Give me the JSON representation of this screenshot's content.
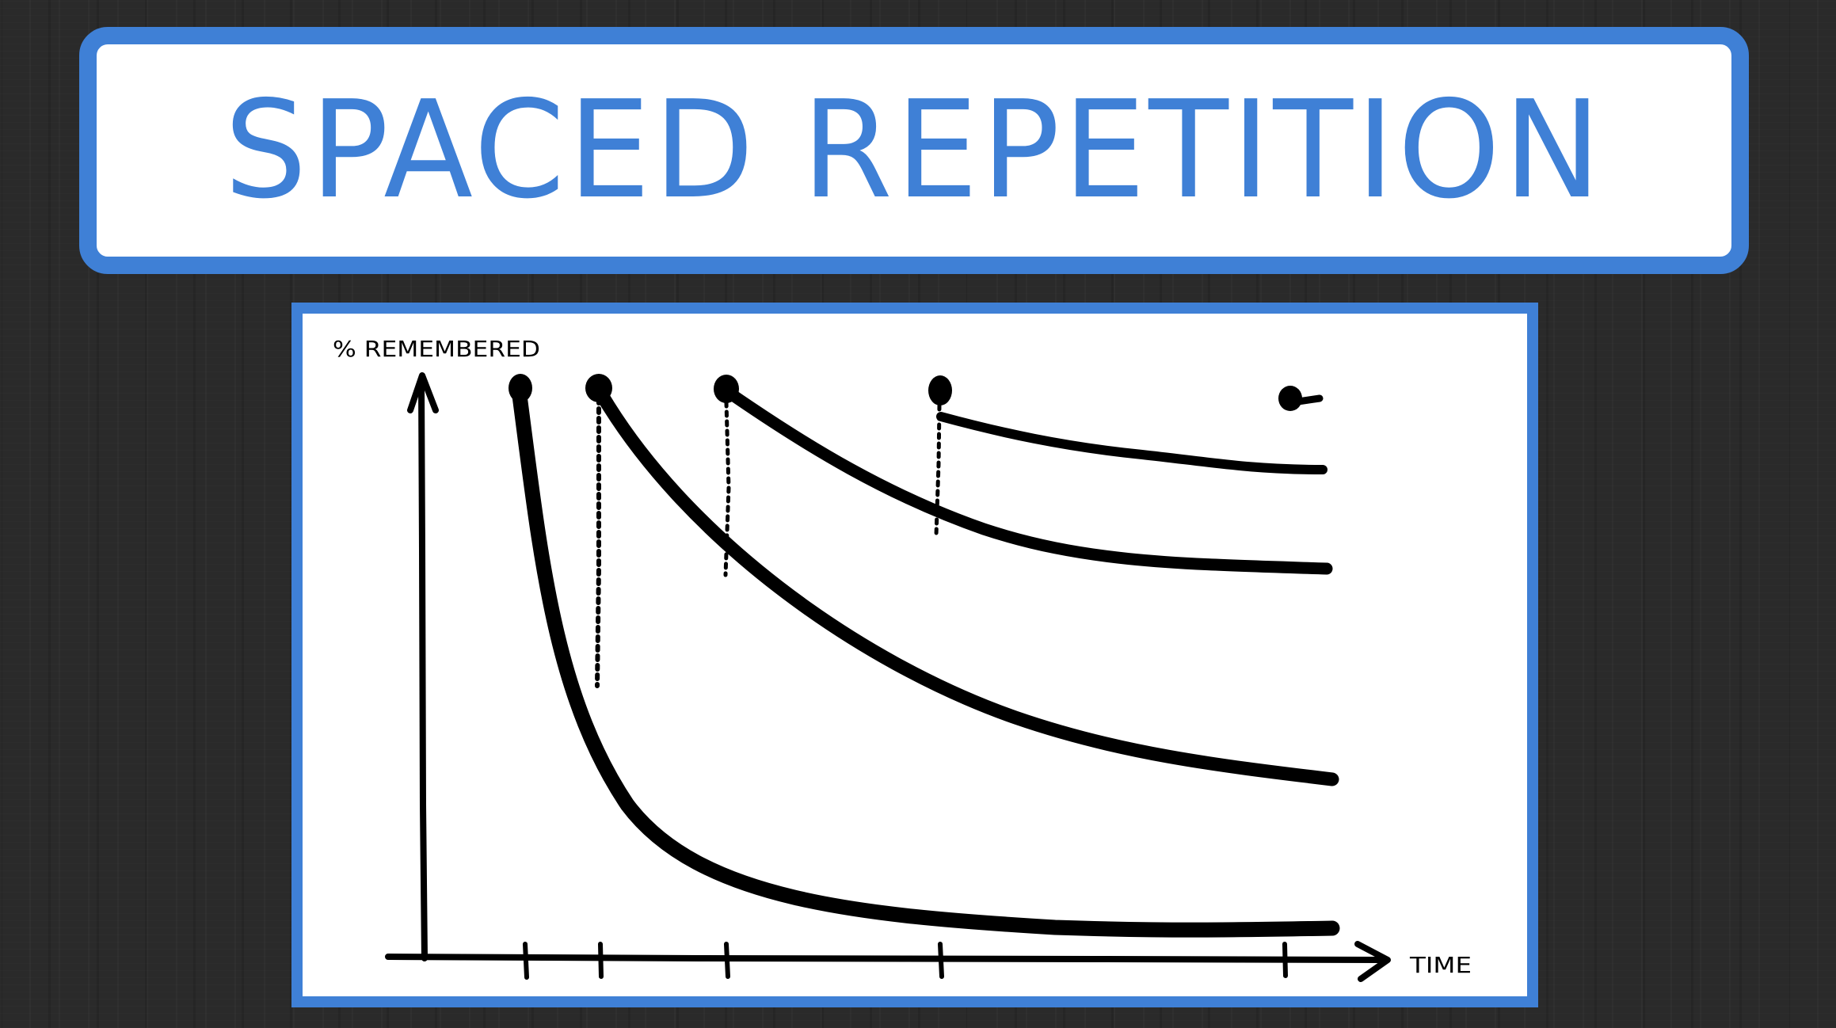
{
  "title": "SPACED REPETITION",
  "diagram": {
    "y_axis_label": "% REMEMBERED",
    "x_axis_label": "TIME",
    "reviews": 5,
    "colors": {
      "accent": "#3f80d6",
      "background": "#2a2a2a",
      "panel": "#ffffff",
      "ink": "#000000"
    }
  }
}
